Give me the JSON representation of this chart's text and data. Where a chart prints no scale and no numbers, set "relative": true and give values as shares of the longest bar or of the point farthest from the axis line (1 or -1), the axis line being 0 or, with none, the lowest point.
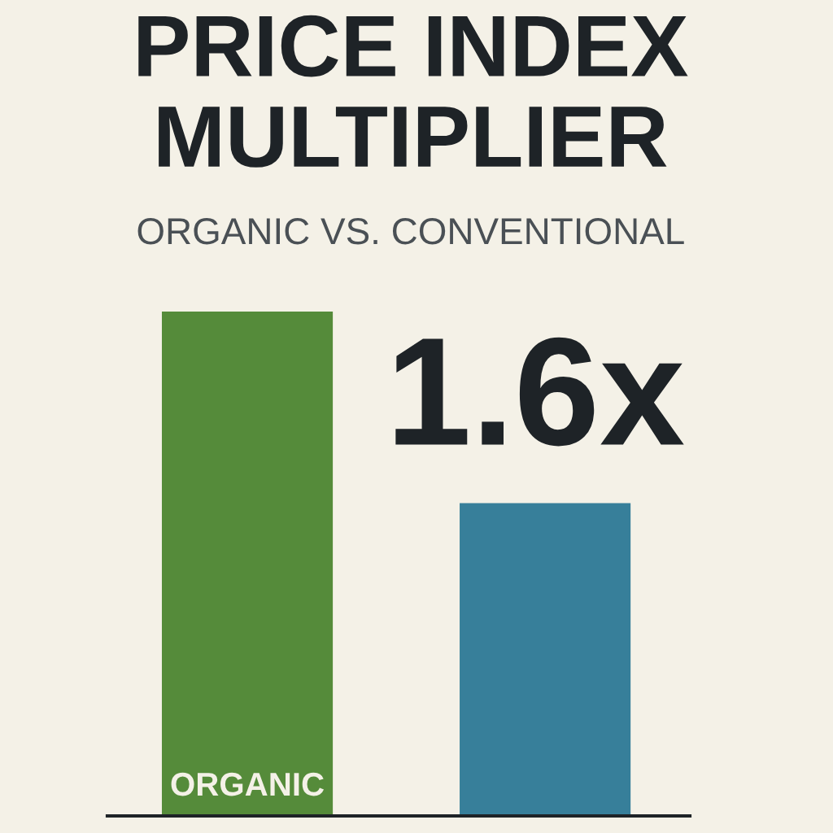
{
  "chart_data": {
    "type": "bar",
    "title": "PRICE INDEX MULTIPLIER",
    "subtitle": "ORGANIC VS. CONVENTIONAL",
    "categories": [
      "ORGANIC",
      null
    ],
    "values": [
      1,
      0.62
    ],
    "colors": [
      "#558b3a",
      "#377f9a"
    ],
    "relative": true,
    "annotations": [
      "1.6x"
    ]
  }
}
